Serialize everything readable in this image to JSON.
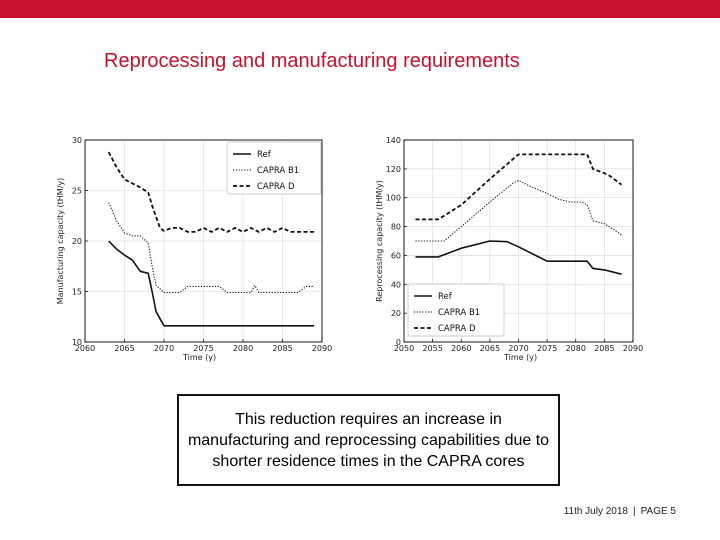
{
  "slide": {
    "title": "Reprocessing and manufacturing requirements",
    "accent_color": "#c8102e",
    "callout": "This reduction requires an increase in manufacturing and reprocessing capabilities due to shorter residence times in the CAPRA cores",
    "footer_date": "11th July 2018",
    "footer_separator": "|",
    "footer_page": "PAGE 5"
  },
  "chart_data": [
    {
      "type": "line",
      "title": "",
      "xlabel": "Time (y)",
      "ylabel": "Manufacturing capacity (tHM/y)",
      "xlim": [
        2060,
        2090
      ],
      "ylim": [
        10,
        30
      ],
      "xticks": [
        2060,
        2065,
        2070,
        2075,
        2080,
        2085,
        2090
      ],
      "yticks": [
        10,
        15,
        20,
        25,
        30
      ],
      "grid": true,
      "legend_position": "top-right",
      "series": [
        {
          "name": "Ref",
          "style": "solid",
          "x": [
            2063,
            2064,
            2065,
            2066,
            2067,
            2068,
            2068.5,
            2069,
            2070,
            2075,
            2080,
            2085,
            2089
          ],
          "y": [
            20,
            19.2,
            18.6,
            18.1,
            17.0,
            16.8,
            15,
            13,
            11.6,
            11.6,
            11.6,
            11.6,
            11.6
          ]
        },
        {
          "name": "CAPRA B1",
          "style": "dotted",
          "x": [
            2063,
            2064,
            2065,
            2066,
            2067,
            2068,
            2068.5,
            2069,
            2070,
            2071,
            2072,
            2073,
            2074,
            2075,
            2076,
            2077,
            2078,
            2079,
            2080,
            2081,
            2081.5,
            2082,
            2083,
            2084,
            2085,
            2086,
            2087,
            2088,
            2089
          ],
          "y": [
            23.8,
            22.0,
            20.8,
            20.5,
            20.5,
            19.8,
            17.5,
            15.6,
            14.9,
            14.9,
            14.9,
            15.5,
            15.5,
            15.5,
            15.5,
            15.5,
            14.9,
            14.9,
            14.9,
            14.9,
            15.6,
            14.9,
            14.9,
            14.9,
            14.9,
            14.9,
            14.9,
            15.5,
            15.5
          ]
        },
        {
          "name": "CAPRA D",
          "style": "dashed",
          "x": [
            2063,
            2064,
            2065,
            2066,
            2067,
            2068,
            2068.5,
            2069,
            2069.5,
            2070,
            2071,
            2072,
            2073,
            2074,
            2075,
            2076,
            2077,
            2078,
            2079,
            2080,
            2081,
            2082,
            2083,
            2084,
            2085,
            2086,
            2087,
            2088,
            2089
          ],
          "y": [
            28.8,
            27.3,
            26.1,
            25.7,
            25.3,
            24.8,
            23.5,
            22.4,
            21.3,
            21.0,
            21.3,
            21.3,
            20.9,
            20.9,
            21.3,
            20.9,
            21.3,
            20.9,
            21.3,
            20.9,
            21.3,
            20.9,
            21.3,
            20.9,
            21.3,
            20.9,
            20.9,
            20.9,
            20.9
          ]
        }
      ]
    },
    {
      "type": "line",
      "title": "",
      "xlabel": "Time (y)",
      "ylabel": "Reprocessing capacity (tHM/y)",
      "xlim": [
        2050,
        2090
      ],
      "ylim": [
        0,
        140
      ],
      "xticks": [
        2050,
        2055,
        2060,
        2065,
        2070,
        2075,
        2080,
        2085,
        2090
      ],
      "yticks": [
        0,
        20,
        40,
        60,
        80,
        100,
        120,
        140
      ],
      "grid": true,
      "legend_position": "bottom-left",
      "series": [
        {
          "name": "Ref",
          "style": "solid",
          "x": [
            2052,
            2056,
            2060,
            2065,
            2068,
            2070,
            2075,
            2080,
            2082,
            2083,
            2085,
            2088
          ],
          "y": [
            59,
            59,
            65,
            70,
            69.5,
            66,
            56,
            56,
            56,
            51,
            50,
            47
          ]
        },
        {
          "name": "CAPRA B1",
          "style": "dotted",
          "x": [
            2052,
            2056,
            2057,
            2060,
            2065,
            2069,
            2070,
            2072,
            2075,
            2077,
            2079,
            2081,
            2082,
            2083,
            2085,
            2087,
            2088
          ],
          "y": [
            70,
            70,
            70,
            80,
            97,
            110,
            112,
            108,
            103,
            99,
            97,
            97,
            95,
            84,
            82,
            77,
            74
          ]
        },
        {
          "name": "CAPRA D",
          "style": "dashed",
          "x": [
            2052,
            2056,
            2060,
            2065,
            2070,
            2075,
            2080,
            2082,
            2083,
            2085,
            2086,
            2087,
            2088
          ],
          "y": [
            85,
            85,
            95,
            113,
            130,
            130,
            130,
            130,
            120,
            117,
            115,
            112,
            109
          ]
        }
      ]
    }
  ]
}
